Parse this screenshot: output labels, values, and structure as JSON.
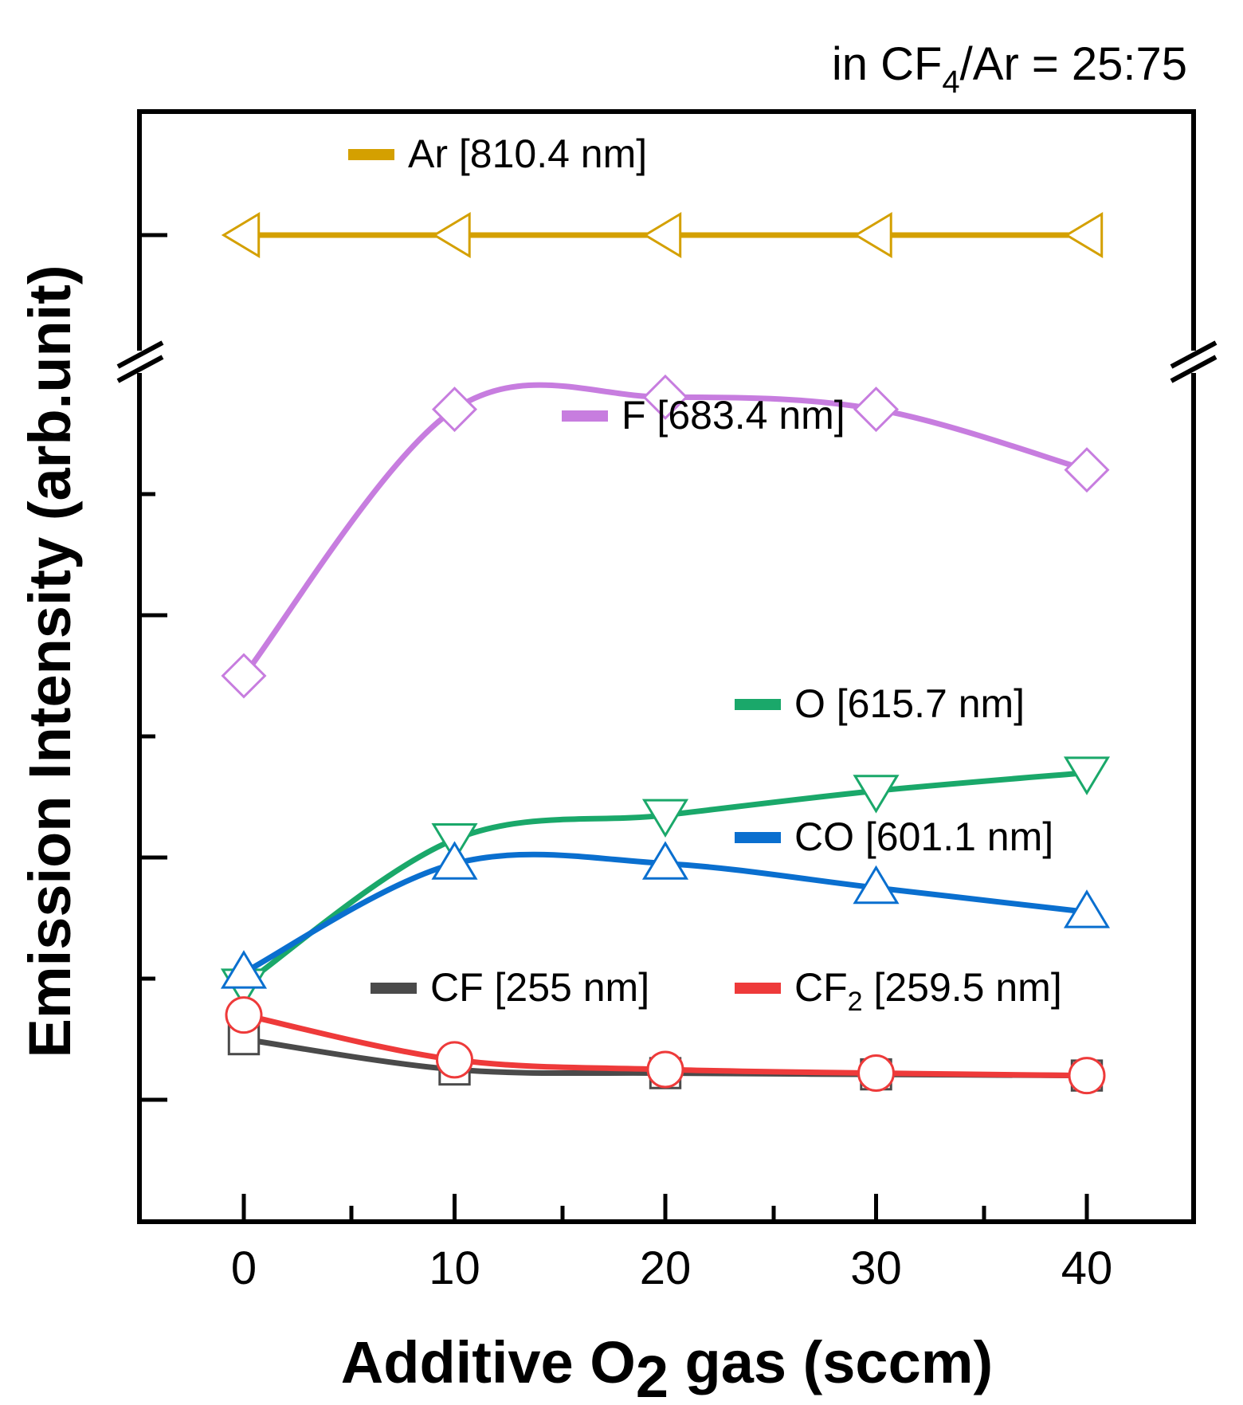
{
  "chart_data": {
    "type": "line",
    "annotation": {
      "prefix": "in CF",
      "sub": "4",
      "suffix": "/Ar = 25:75"
    },
    "xlabel": {
      "prefix": "Additive O",
      "sub": "2",
      "suffix": " gas (sccm)"
    },
    "ylabel": "Emission Intensity (arb.unit)",
    "x": [
      0,
      10,
      20,
      30,
      40
    ],
    "x_ticks": [
      "0",
      "10",
      "20",
      "30",
      "40"
    ],
    "xlim": [
      -5,
      45
    ],
    "y_axis_break": true,
    "y_units": "arbitrary (no numeric tick labels)",
    "series": [
      {
        "name": "Ar [810.4 nm]",
        "legend_prefix": "Ar [810.4 nm]",
        "legend_sub": "",
        "legend_suffix": "",
        "color": "#d4a000",
        "marker": "triangle-left",
        "values": [
          11.4,
          11.4,
          11.4,
          11.4,
          11.4
        ]
      },
      {
        "name": "F [683.4 nm]",
        "legend_prefix": "F [683.4 nm]",
        "legend_sub": "",
        "legend_suffix": "",
        "color": "#c77ddf",
        "marker": "diamond",
        "values": [
          3.5,
          5.7,
          5.8,
          5.7,
          5.2
        ]
      },
      {
        "name": "O [615.7 nm]",
        "legend_prefix": "O [615.7 nm]",
        "legend_sub": "",
        "legend_suffix": "",
        "color": "#1aa86a",
        "marker": "triangle-down",
        "values": [
          0.95,
          2.15,
          2.35,
          2.55,
          2.7
        ]
      },
      {
        "name": "CO [601.1 nm]",
        "legend_prefix": "CO [601.1 nm]",
        "legend_sub": "",
        "legend_suffix": "",
        "color": "#0a6fcf",
        "marker": "triangle-up",
        "values": [
          1.05,
          1.95,
          1.95,
          1.75,
          1.55
        ]
      },
      {
        "name": "CF [255 nm]",
        "legend_prefix": "CF [255 nm]",
        "legend_sub": "",
        "legend_suffix": "",
        "color": "#4a4a4a",
        "marker": "square",
        "values": [
          0.5,
          0.25,
          0.22,
          0.21,
          0.2
        ]
      },
      {
        "name": "CF2 [259.5 nm]",
        "legend_prefix": "CF",
        "legend_sub": "2",
        "legend_suffix": " [259.5 nm]",
        "color": "#ee3a3a",
        "marker": "circle",
        "values": [
          0.7,
          0.33,
          0.25,
          0.22,
          0.2
        ]
      }
    ]
  }
}
